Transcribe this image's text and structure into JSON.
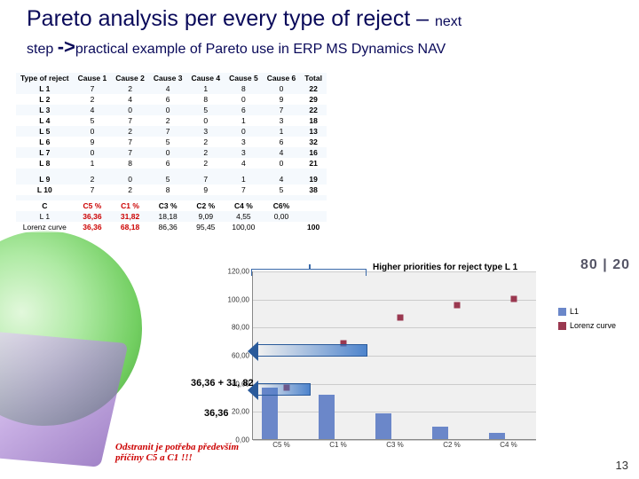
{
  "title": {
    "main": "Pareto analysis per every type of reject – ",
    "next": "next",
    "line2_prefix": "step ",
    "arrow": "->",
    "line2_rest": "practical example of Pareto use in ERP MS Dynamics NAV"
  },
  "table": {
    "headers": [
      "Type of reject",
      "Cause 1",
      "Cause 2",
      "Cause 3",
      "Cause 4",
      "Cause 5",
      "Cause 6",
      "Total"
    ],
    "rows": [
      [
        "L 1",
        "7",
        "2",
        "4",
        "1",
        "8",
        "0",
        "22"
      ],
      [
        "L 2",
        "2",
        "4",
        "6",
        "8",
        "0",
        "9",
        "29"
      ],
      [
        "L 3",
        "4",
        "0",
        "0",
        "5",
        "6",
        "7",
        "22"
      ],
      [
        "L 4",
        "5",
        "7",
        "2",
        "0",
        "1",
        "3",
        "18"
      ],
      [
        "L 5",
        "0",
        "2",
        "7",
        "3",
        "0",
        "1",
        "13"
      ],
      [
        "L 6",
        "9",
        "7",
        "5",
        "2",
        "3",
        "6",
        "32"
      ],
      [
        "L 7",
        "0",
        "7",
        "0",
        "2",
        "3",
        "4",
        "16"
      ],
      [
        "L 8",
        "1",
        "8",
        "6",
        "2",
        "4",
        "0",
        "21"
      ]
    ],
    "gap_rows": [
      [
        "L 9",
        "2",
        "0",
        "5",
        "7",
        "1",
        "4",
        "19"
      ],
      [
        "L 10",
        "7",
        "2",
        "8",
        "9",
        "7",
        "5",
        "38"
      ]
    ],
    "summary": {
      "headers": [
        "C",
        "C5 %",
        "C1 %",
        "C3 %",
        "C2 %",
        "C4 %",
        "C6%",
        ""
      ],
      "l1": [
        "L 1",
        "36,36",
        "31,82",
        "18,18",
        "9,09",
        "4,55",
        "0,00",
        ""
      ],
      "lorenz": [
        "Lorenz curve",
        "36,36",
        "68,18",
        "86,36",
        "95,45",
        "100,00",
        "",
        "100"
      ]
    }
  },
  "priority_label": "Higher priorities for reject type L 1",
  "eighty20": "80 | 20",
  "chart": {
    "ylim": [
      0,
      120
    ],
    "ytick_step": 20,
    "y_ticks": [
      "0,00",
      "20,00",
      "40,00",
      "60,00",
      "80,00",
      "100,00",
      "120,00"
    ],
    "categories": [
      "C5 %",
      "C1 %",
      "C3 %",
      "C2 %",
      "C4 %"
    ],
    "l1_values": [
      36.36,
      31.82,
      18.18,
      9.09,
      4.55
    ],
    "lorenz_values": [
      36.36,
      68.18,
      86.36,
      95.45,
      100.0
    ],
    "bar_color": "#6b87c9",
    "lorenz_color": "#9a3850",
    "background": "#f0f0f0",
    "grid_color": "#cccccc",
    "legend": [
      {
        "label": "L1",
        "color": "#6b87c9"
      },
      {
        "label": "Lorenz curve",
        "color": "#9a3850"
      }
    ]
  },
  "annotations": {
    "calc1": "36,36 + 31, 82",
    "calc2": "36,36"
  },
  "red_note_l1": "Odstranit je potřeba především",
  "red_note_l2": "příčiny C5 a C1 !!!",
  "page_number": "13"
}
